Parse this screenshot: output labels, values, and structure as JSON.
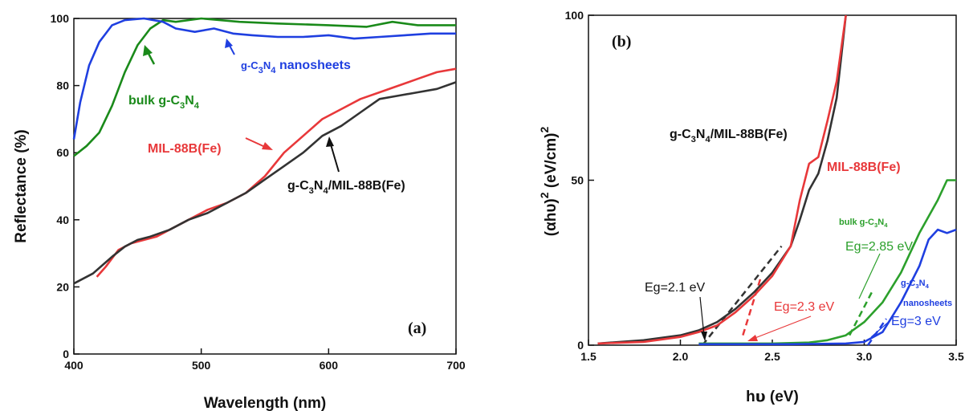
{
  "colors": {
    "composite": "#333333",
    "mil": "#e8383a",
    "bulk": "#2ca02c",
    "bulk_a": "#1a8a1a",
    "nano": "#1f3fe0"
  },
  "chart_data": [
    {
      "type": "line",
      "panel_label": "(a)",
      "xlabel": "Wavelength (nm)",
      "ylabel": "Reflectance (%)",
      "xlim": [
        400,
        700
      ],
      "ylim": [
        0,
        100
      ],
      "xticks": [
        "400",
        "500",
        "600",
        "700"
      ],
      "yticks": [
        "0",
        "20",
        "40",
        "60",
        "80",
        "100"
      ],
      "grid": false,
      "legend": "none",
      "series": [
        {
          "name": "MIL-88B(Fe)",
          "color": "#e8383a",
          "points": [
            [
              418,
              23
            ],
            [
              425,
              26
            ],
            [
              435,
              31
            ],
            [
              445,
              33
            ],
            [
              455,
              34
            ],
            [
              465,
              35
            ],
            [
              475,
              37
            ],
            [
              490,
              40
            ],
            [
              505,
              43
            ],
            [
              520,
              45
            ],
            [
              535,
              48
            ],
            [
              550,
              53
            ],
            [
              565,
              60
            ],
            [
              580,
              65
            ],
            [
              595,
              70
            ],
            [
              610,
              73
            ],
            [
              625,
              76
            ],
            [
              640,
              78
            ],
            [
              655,
              80
            ],
            [
              670,
              82
            ],
            [
              685,
              84
            ],
            [
              700,
              85
            ]
          ]
        },
        {
          "name": "g-C3N4/MIL-88B(Fe)",
          "color": "#333333",
          "points": [
            [
              400,
              21
            ],
            [
              415,
              24
            ],
            [
              430,
              29
            ],
            [
              440,
              32
            ],
            [
              450,
              34
            ],
            [
              460,
              35
            ],
            [
              475,
              37
            ],
            [
              490,
              40
            ],
            [
              505,
              42
            ],
            [
              520,
              45
            ],
            [
              535,
              48
            ],
            [
              550,
              52
            ],
            [
              565,
              56
            ],
            [
              580,
              60
            ],
            [
              595,
              65
            ],
            [
              610,
              68
            ],
            [
              625,
              72
            ],
            [
              640,
              76
            ],
            [
              655,
              77
            ],
            [
              670,
              78
            ],
            [
              685,
              79
            ],
            [
              700,
              81
            ]
          ]
        },
        {
          "name": "bulk g-C3N4",
          "color": "#1a8a1a",
          "points": [
            [
              400,
              59
            ],
            [
              410,
              62
            ],
            [
              420,
              66
            ],
            [
              430,
              74
            ],
            [
              440,
              84
            ],
            [
              450,
              92
            ],
            [
              460,
              97
            ],
            [
              470,
              99.5
            ],
            [
              480,
              99
            ],
            [
              500,
              100
            ],
            [
              530,
              99
            ],
            [
              560,
              98.5
            ],
            [
              600,
              98
            ],
            [
              630,
              97.5
            ],
            [
              650,
              99
            ],
            [
              670,
              98
            ],
            [
              700,
              98
            ]
          ]
        },
        {
          "name": "g-C3N4 nanosheets",
          "color": "#1f3fe0",
          "points": [
            [
              400,
              64
            ],
            [
              405,
              75
            ],
            [
              412,
              86
            ],
            [
              420,
              93
            ],
            [
              430,
              98
            ],
            [
              440,
              99.5
            ],
            [
              455,
              100
            ],
            [
              470,
              99
            ],
            [
              480,
              97
            ],
            [
              495,
              96
            ],
            [
              510,
              97
            ],
            [
              525,
              95.5
            ],
            [
              540,
              95
            ],
            [
              560,
              94.5
            ],
            [
              580,
              94.5
            ],
            [
              600,
              95
            ],
            [
              620,
              94
            ],
            [
              640,
              94.5
            ],
            [
              660,
              95
            ],
            [
              680,
              95.5
            ],
            [
              700,
              95.5
            ]
          ]
        }
      ],
      "annotations": [
        "bulk g-C3N4",
        "g-C3N4 nanosheets",
        "MIL-88B(Fe)",
        "g-C3N4/MIL-88B(Fe)"
      ]
    },
    {
      "type": "line",
      "panel_label": "(b)",
      "xlabel": "hυ (eV)",
      "ylabel": "(αhυ)2 (eV/cm)2",
      "xlim": [
        1.5,
        3.5
      ],
      "ylim": [
        0,
        100
      ],
      "xticks": [
        "1.5",
        "2.0",
        "2.5",
        "3.0",
        "3.5"
      ],
      "yticks": [
        "0",
        "50",
        "100"
      ],
      "grid": false,
      "legend": "none",
      "series": [
        {
          "name": "g-C3N4/MIL-88B(Fe)",
          "color": "#333333",
          "points": [
            [
              1.55,
              0.5
            ],
            [
              1.8,
              1.5
            ],
            [
              2.0,
              3
            ],
            [
              2.1,
              4.5
            ],
            [
              2.2,
              7
            ],
            [
              2.3,
              11
            ],
            [
              2.4,
              16
            ],
            [
              2.5,
              22
            ],
            [
              2.6,
              30
            ],
            [
              2.65,
              38
            ],
            [
              2.7,
              47
            ],
            [
              2.75,
              52
            ],
            [
              2.8,
              62
            ],
            [
              2.85,
              75
            ],
            [
              2.9,
              100
            ]
          ]
        },
        {
          "name": "MIL-88B(Fe)",
          "color": "#e8383a",
          "points": [
            [
              1.55,
              0.5
            ],
            [
              1.8,
              1
            ],
            [
              2.0,
              2.5
            ],
            [
              2.1,
              4
            ],
            [
              2.2,
              6
            ],
            [
              2.3,
              10
            ],
            [
              2.4,
              15
            ],
            [
              2.5,
              21
            ],
            [
              2.6,
              30
            ],
            [
              2.65,
              44
            ],
            [
              2.7,
              55
            ],
            [
              2.75,
              57
            ],
            [
              2.8,
              68
            ],
            [
              2.85,
              80
            ],
            [
              2.9,
              100
            ]
          ]
        },
        {
          "name": "bulk g-C3N4",
          "color": "#2ca02c",
          "points": [
            [
              2.1,
              0.5
            ],
            [
              2.5,
              0.5
            ],
            [
              2.7,
              0.8
            ],
            [
              2.8,
              1.5
            ],
            [
              2.9,
              3
            ],
            [
              3.0,
              7
            ],
            [
              3.1,
              13
            ],
            [
              3.2,
              22
            ],
            [
              3.3,
              34
            ],
            [
              3.4,
              44
            ],
            [
              3.45,
              50
            ],
            [
              3.5,
              50
            ]
          ]
        },
        {
          "name": "g-C3N4 nanosheets",
          "color": "#1f3fe0",
          "points": [
            [
              2.1,
              0.3
            ],
            [
              2.6,
              0.3
            ],
            [
              2.9,
              0.5
            ],
            [
              3.0,
              1
            ],
            [
              3.1,
              4
            ],
            [
              3.2,
              13
            ],
            [
              3.3,
              24
            ],
            [
              3.35,
              32
            ],
            [
              3.4,
              35
            ],
            [
              3.45,
              34
            ],
            [
              3.5,
              35
            ]
          ]
        }
      ],
      "tangents": [
        {
          "color": "#333333",
          "from": [
            2.12,
            0
          ],
          "to": [
            2.55,
            30
          ]
        },
        {
          "color": "#e8383a",
          "from": [
            2.34,
            3
          ],
          "to": [
            2.44,
            21
          ]
        },
        {
          "color": "#2ca02c",
          "from": [
            2.92,
            3
          ],
          "to": [
            3.05,
            17
          ]
        },
        {
          "color": "#1f3fe0",
          "from": [
            3.02,
            0
          ],
          "to": [
            3.12,
            8
          ]
        }
      ],
      "annotations": [
        "g-C3N4/MIL-88B(Fe)",
        "MIL-88B(Fe)",
        "bulk g-C3N4",
        "Eg=2.85 eV",
        "Eg=2.1 eV",
        "Eg=2.3 eV",
        "g-C3N4",
        "nanosheets",
        "Eg=3 eV"
      ]
    }
  ]
}
